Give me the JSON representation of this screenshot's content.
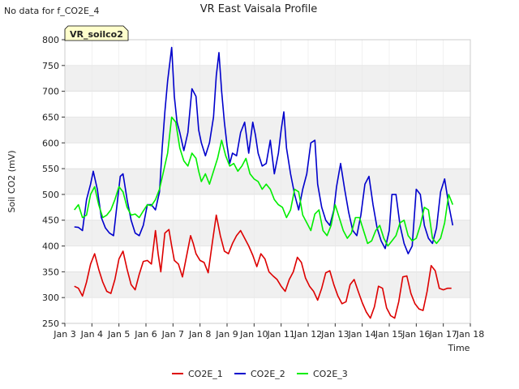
{
  "chart_data": {
    "type": "line",
    "title": "VR East Vaisala Profile",
    "note": "No data for f_CO2E_4",
    "badge": "VR_soilco2",
    "xlabel": "Time",
    "ylabel": "Soil CO2 (mV)",
    "xlim": [
      3,
      18
    ],
    "ylim": [
      250,
      800
    ],
    "x_ticks": [
      {
        "v": 3,
        "label": "Jan 3"
      },
      {
        "v": 4,
        "label": "Jan 4"
      },
      {
        "v": 5,
        "label": "Jan 5"
      },
      {
        "v": 6,
        "label": "Jan 6"
      },
      {
        "v": 7,
        "label": "Jan 7"
      },
      {
        "v": 8,
        "label": "Jan 8"
      },
      {
        "v": 9,
        "label": "Jan 9"
      },
      {
        "v": 10,
        "label": "Jan 10"
      },
      {
        "v": 11,
        "label": "Jan 11"
      },
      {
        "v": 12,
        "label": "Jan 12"
      },
      {
        "v": 13,
        "label": "Jan 13"
      },
      {
        "v": 14,
        "label": "Jan 14"
      },
      {
        "v": 15,
        "label": "Jan 15"
      },
      {
        "v": 16,
        "label": "Jan 16"
      },
      {
        "v": 17,
        "label": "Jan 17"
      },
      {
        "v": 18,
        "label": "Jan 18"
      }
    ],
    "y_ticks": [
      250,
      300,
      350,
      400,
      450,
      500,
      550,
      600,
      650,
      700,
      750,
      800
    ],
    "colors": {
      "CO2E_1": "#dd0000",
      "CO2E_2": "#0000cc",
      "CO2E_3": "#00ee00",
      "band": "#f0f0f0",
      "grid": "#dcdcdc",
      "badge_bg": "#ffffcc",
      "badge_text": "#990000"
    },
    "series": [
      {
        "name": "CO2E_1",
        "color": "#dd0000",
        "x": [
          3.35,
          3.5,
          3.65,
          3.8,
          3.95,
          4.1,
          4.25,
          4.4,
          4.55,
          4.7,
          4.85,
          5.0,
          5.15,
          5.3,
          5.45,
          5.6,
          5.75,
          5.9,
          6.05,
          6.2,
          6.35,
          6.45,
          6.55,
          6.7,
          6.85,
          6.95,
          7.05,
          7.2,
          7.35,
          7.5,
          7.65,
          7.75,
          7.85,
          8.0,
          8.15,
          8.3,
          8.45,
          8.6,
          8.75,
          8.9,
          9.05,
          9.2,
          9.35,
          9.5,
          9.65,
          9.8,
          9.95,
          10.1,
          10.25,
          10.4,
          10.55,
          10.7,
          10.85,
          11.0,
          11.15,
          11.3,
          11.45,
          11.6,
          11.75,
          11.9,
          12.05,
          12.2,
          12.35,
          12.5,
          12.65,
          12.8,
          12.95,
          13.1,
          13.25,
          13.4,
          13.55,
          13.7,
          13.85,
          14.0,
          14.15,
          14.3,
          14.45,
          14.6,
          14.75,
          14.9,
          15.05,
          15.2,
          15.35,
          15.5,
          15.65,
          15.8,
          15.95,
          16.1,
          16.25,
          16.4,
          16.55,
          16.7,
          16.85,
          17.0,
          17.15,
          17.3
        ],
        "y": [
          322,
          318,
          303,
          330,
          365,
          385,
          355,
          330,
          312,
          308,
          335,
          375,
          390,
          355,
          325,
          315,
          345,
          370,
          372,
          365,
          430,
          385,
          350,
          425,
          432,
          400,
          372,
          365,
          340,
          380,
          420,
          405,
          385,
          372,
          368,
          348,
          405,
          460,
          420,
          390,
          385,
          405,
          420,
          430,
          415,
          400,
          382,
          360,
          385,
          375,
          350,
          342,
          335,
          322,
          312,
          335,
          350,
          378,
          368,
          338,
          322,
          312,
          295,
          318,
          348,
          352,
          325,
          303,
          288,
          292,
          325,
          335,
          312,
          290,
          272,
          260,
          282,
          322,
          318,
          280,
          265,
          260,
          292,
          340,
          342,
          308,
          288,
          278,
          275,
          312,
          362,
          352,
          318,
          315,
          318,
          318
        ]
      },
      {
        "name": "CO2E_2",
        "color": "#0000cc",
        "x": [
          3.35,
          3.5,
          3.65,
          3.8,
          3.95,
          4.05,
          4.2,
          4.35,
          4.5,
          4.65,
          4.8,
          4.95,
          5.05,
          5.15,
          5.3,
          5.45,
          5.6,
          5.75,
          5.9,
          6.05,
          6.2,
          6.35,
          6.5,
          6.6,
          6.7,
          6.8,
          6.95,
          7.05,
          7.15,
          7.25,
          7.4,
          7.55,
          7.7,
          7.85,
          7.95,
          8.05,
          8.2,
          8.35,
          8.5,
          8.6,
          8.7,
          8.8,
          8.9,
          9.0,
          9.1,
          9.2,
          9.35,
          9.5,
          9.65,
          9.8,
          9.95,
          10.05,
          10.15,
          10.3,
          10.45,
          10.6,
          10.75,
          10.9,
          11.0,
          11.1,
          11.2,
          11.35,
          11.5,
          11.65,
          11.8,
          11.95,
          12.1,
          12.25,
          12.35,
          12.5,
          12.65,
          12.8,
          12.95,
          13.05,
          13.2,
          13.35,
          13.5,
          13.65,
          13.8,
          13.95,
          14.1,
          14.25,
          14.4,
          14.55,
          14.7,
          14.85,
          15.0,
          15.1,
          15.25,
          15.4,
          15.55,
          15.7,
          15.85,
          16.0,
          16.15,
          16.3,
          16.45,
          16.6,
          16.75,
          16.9,
          17.05,
          17.2,
          17.35
        ],
        "y": [
          437,
          436,
          430,
          490,
          520,
          545,
          510,
          455,
          435,
          425,
          420,
          490,
          535,
          540,
          490,
          450,
          425,
          420,
          440,
          480,
          480,
          470,
          505,
          590,
          660,
          720,
          785,
          690,
          640,
          620,
          585,
          620,
          705,
          690,
          625,
          600,
          575,
          600,
          650,
          730,
          775,
          700,
          640,
          595,
          560,
          580,
          575,
          620,
          640,
          580,
          640,
          615,
          580,
          555,
          560,
          605,
          540,
          580,
          625,
          660,
          590,
          540,
          500,
          470,
          510,
          540,
          600,
          605,
          520,
          475,
          450,
          440,
          470,
          515,
          560,
          510,
          465,
          430,
          420,
          460,
          520,
          535,
          480,
          435,
          410,
          395,
          430,
          500,
          500,
          440,
          405,
          385,
          400,
          510,
          500,
          440,
          415,
          405,
          435,
          505,
          530,
          480,
          440
        ]
      },
      {
        "name": "CO2E_3",
        "color": "#00ee00",
        "x": [
          3.35,
          3.5,
          3.65,
          3.8,
          3.95,
          4.1,
          4.25,
          4.4,
          4.55,
          4.7,
          4.85,
          5.0,
          5.15,
          5.3,
          5.45,
          5.6,
          5.75,
          5.9,
          6.05,
          6.2,
          6.35,
          6.5,
          6.65,
          6.8,
          6.95,
          7.1,
          7.25,
          7.4,
          7.55,
          7.7,
          7.85,
          7.95,
          8.05,
          8.2,
          8.35,
          8.5,
          8.65,
          8.8,
          8.95,
          9.1,
          9.25,
          9.4,
          9.55,
          9.7,
          9.85,
          10.0,
          10.15,
          10.3,
          10.45,
          10.6,
          10.75,
          10.9,
          11.05,
          11.2,
          11.35,
          11.5,
          11.65,
          11.8,
          11.95,
          12.1,
          12.25,
          12.4,
          12.55,
          12.7,
          12.85,
          13.0,
          13.15,
          13.3,
          13.45,
          13.6,
          13.75,
          13.9,
          14.05,
          14.2,
          14.35,
          14.5,
          14.65,
          14.8,
          14.95,
          15.1,
          15.25,
          15.4,
          15.55,
          15.7,
          15.85,
          16.0,
          16.15,
          16.3,
          16.45,
          16.6,
          16.75,
          16.9,
          17.05,
          17.2,
          17.35
        ],
        "y": [
          470,
          480,
          455,
          460,
          500,
          515,
          480,
          455,
          460,
          470,
          490,
          515,
          505,
          475,
          460,
          462,
          455,
          468,
          480,
          478,
          490,
          510,
          545,
          580,
          650,
          640,
          590,
          565,
          555,
          580,
          570,
          545,
          525,
          540,
          520,
          545,
          570,
          605,
          575,
          555,
          560,
          545,
          555,
          570,
          540,
          530,
          525,
          510,
          520,
          510,
          490,
          480,
          475,
          455,
          470,
          510,
          505,
          460,
          445,
          430,
          462,
          470,
          430,
          420,
          440,
          480,
          455,
          430,
          415,
          425,
          455,
          455,
          430,
          405,
          410,
          430,
          440,
          415,
          400,
          410,
          420,
          445,
          450,
          420,
          410,
          415,
          440,
          475,
          470,
          415,
          405,
          415,
          445,
          500,
          480
        ]
      }
    ]
  }
}
